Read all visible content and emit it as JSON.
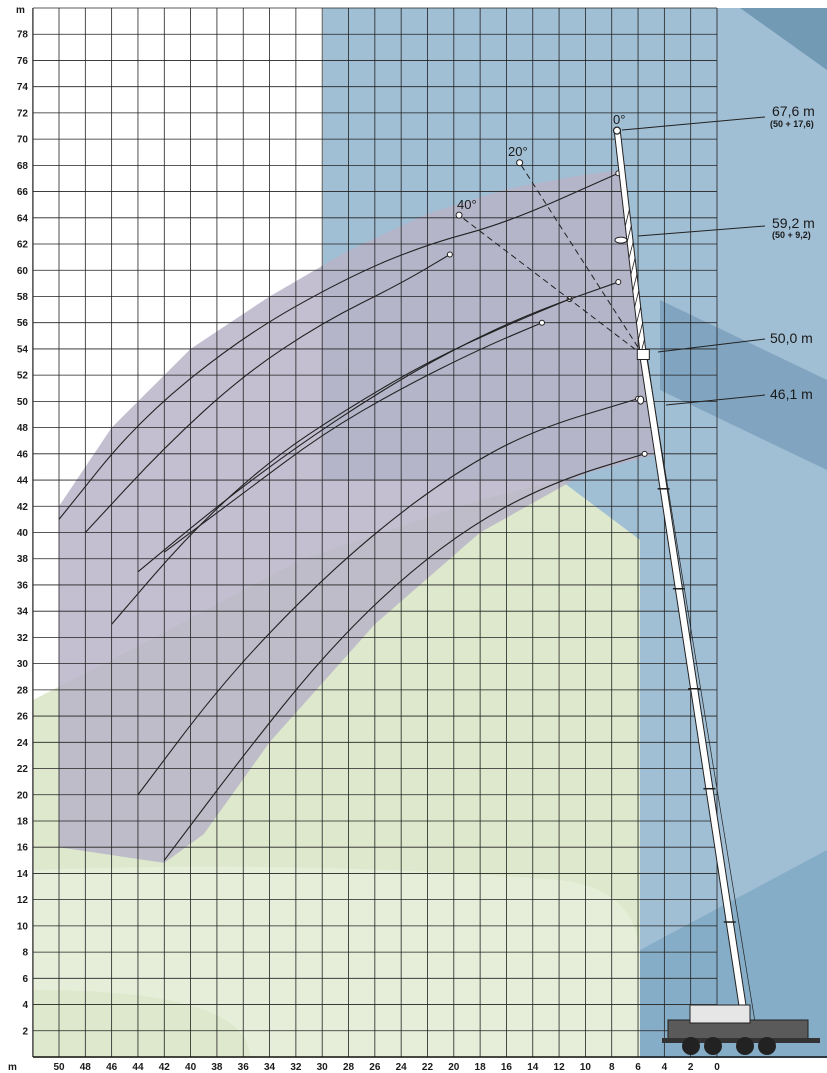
{
  "chart_data": {
    "type": "line",
    "xlabel": "m",
    "ylabel": "m",
    "x_direction": "reversed",
    "xlim": [
      0,
      52
    ],
    "ylim": [
      0,
      80
    ],
    "x_ticks": [
      50,
      48,
      46,
      44,
      42,
      40,
      38,
      36,
      34,
      32,
      30,
      28,
      26,
      24,
      22,
      20,
      18,
      16,
      14,
      12,
      10,
      8,
      6,
      4,
      2,
      0
    ],
    "y_ticks": [
      2,
      4,
      6,
      8,
      10,
      12,
      14,
      16,
      18,
      20,
      22,
      24,
      26,
      28,
      30,
      32,
      34,
      36,
      38,
      40,
      42,
      44,
      46,
      48,
      50,
      52,
      54,
      56,
      58,
      60,
      62,
      64,
      66,
      68,
      70,
      72,
      74,
      76,
      78
    ],
    "grid": true,
    "working_range_outline": [
      [
        50,
        16
      ],
      [
        50,
        42
      ],
      [
        46,
        48
      ],
      [
        40,
        54
      ],
      [
        34,
        58
      ],
      [
        28,
        61.5
      ],
      [
        22,
        64.3
      ],
      [
        16,
        66.2
      ],
      [
        10,
        67.3
      ],
      [
        7.5,
        67.6
      ],
      [
        4.5,
        46
      ],
      [
        10,
        44.5
      ],
      [
        18,
        40
      ],
      [
        26,
        33
      ],
      [
        34,
        24
      ],
      [
        39,
        17
      ],
      [
        42,
        14.8
      ]
    ],
    "series": [
      {
        "points": [
          [
            50,
            41
          ],
          [
            44,
            48.5
          ],
          [
            36,
            55
          ],
          [
            28,
            59.5
          ],
          [
            22,
            62
          ],
          [
            16,
            63.6
          ],
          [
            7.5,
            67.4
          ]
        ]
      },
      {
        "points": [
          [
            48,
            40
          ],
          [
            42,
            46.5
          ],
          [
            36,
            52
          ],
          [
            30,
            56
          ],
          [
            24,
            59
          ],
          [
            20.3,
            61.2
          ]
        ]
      },
      {
        "points": [
          [
            46,
            33
          ],
          [
            40,
            40
          ],
          [
            34,
            45.5
          ],
          [
            28,
            49.5
          ],
          [
            22,
            53
          ],
          [
            16,
            55.8
          ],
          [
            11.2,
            57.8
          ]
        ]
      },
      {
        "points": [
          [
            44,
            37
          ],
          [
            38,
            42
          ],
          [
            32,
            46.5
          ],
          [
            26,
            50.5
          ],
          [
            20,
            54
          ],
          [
            14,
            56.8
          ],
          [
            7.5,
            59.1
          ]
        ]
      },
      {
        "points": [
          [
            42,
            38.5
          ],
          [
            36,
            43
          ],
          [
            30,
            47.5
          ],
          [
            24,
            51
          ],
          [
            18,
            54
          ],
          [
            13.3,
            56
          ]
        ]
      },
      {
        "points": [
          [
            44,
            20
          ],
          [
            38,
            28
          ],
          [
            32,
            34.5
          ],
          [
            26,
            40
          ],
          [
            20,
            44.5
          ],
          [
            14,
            47.8
          ],
          [
            6,
            50.2
          ]
        ]
      },
      {
        "points": [
          [
            42,
            15
          ],
          [
            36,
            23
          ],
          [
            30,
            30.5
          ],
          [
            24,
            36.5
          ],
          [
            18,
            41
          ],
          [
            12,
            44
          ],
          [
            5.5,
            46
          ]
        ]
      }
    ],
    "boom_lengths": [
      {
        "label": "67,6 m",
        "sub": "(50 + 17,6)"
      },
      {
        "label": "59,2 m",
        "sub": "(50 + 9,2)"
      },
      {
        "label": "50,0 m",
        "sub": ""
      },
      {
        "label": "46,1 m",
        "sub": ""
      }
    ],
    "luffing_angles": [
      "0°",
      "20°",
      "40°"
    ],
    "colors": {
      "grid": "#222222",
      "range_fill": "#b9b4c8",
      "curve": "#222222",
      "bg_blue": "#8fb3cc",
      "bg_green": "#d9e6c6",
      "boom": "#ffffff"
    }
  }
}
